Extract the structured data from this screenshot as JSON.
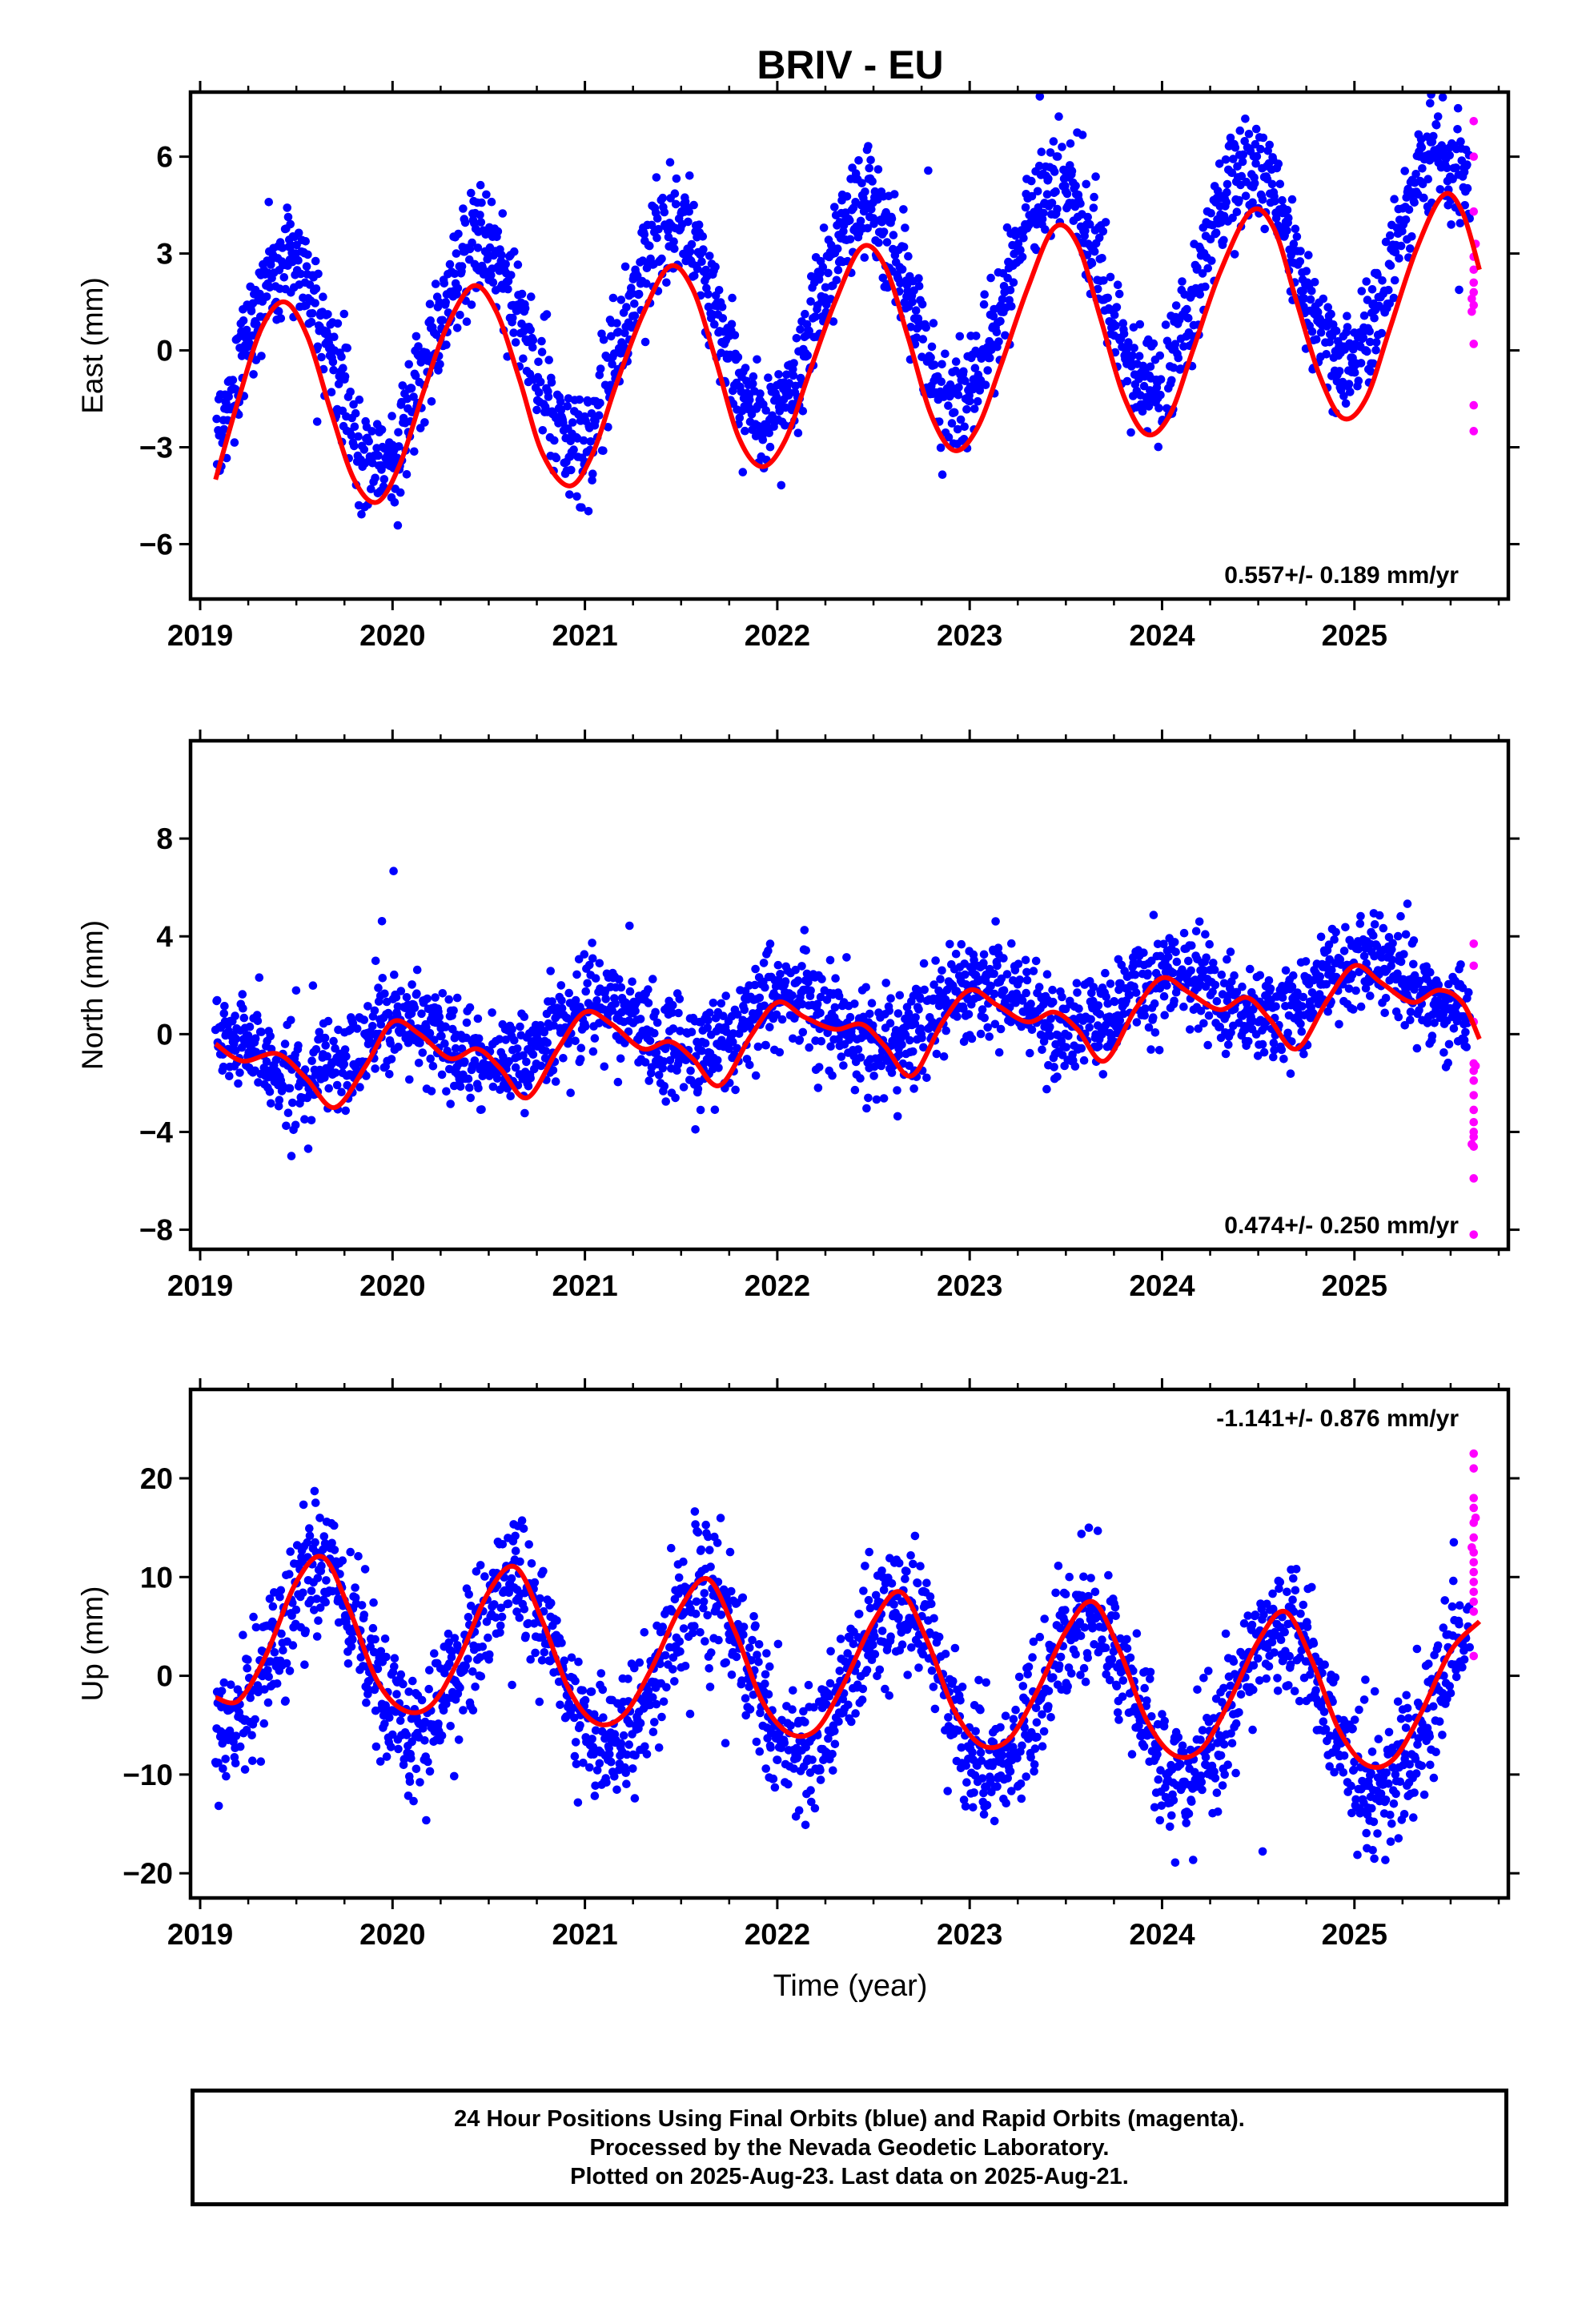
{
  "title": "BRIV - EU",
  "xlabel": "Time (year)",
  "colors": {
    "final": "#0000ff",
    "rapid": "#ff00ff",
    "model": "#ff0000",
    "frame": "#000000"
  },
  "caption": [
    "24 Hour Positions Using Final Orbits (blue) and Rapid Orbits (magenta).",
    "Processed by the Nevada Geodetic Laboratory.",
    "Plotted on 2025-Aug-23. Last data on 2025-Aug-21."
  ],
  "chart_data": [
    {
      "type": "scatter",
      "ylabel": "East (mm)",
      "xlim": [
        2018.95,
        2025.8
      ],
      "ylim": [
        -7.7,
        8.0
      ],
      "xticks": [
        "2019",
        "2020",
        "2021",
        "2022",
        "2023",
        "2024",
        "2025"
      ],
      "yticks": [
        -6,
        -3,
        0,
        3,
        6
      ],
      "rate": "0.557+/- 0.189 mm/yr",
      "rate_position": "bottom-right",
      "model": {
        "name": "model fit",
        "points": [
          [
            2019.08,
            -4.0
          ],
          [
            2019.2,
            -1.5
          ],
          [
            2019.32,
            0.7
          ],
          [
            2019.44,
            1.5
          ],
          [
            2019.56,
            0.4
          ],
          [
            2019.68,
            -1.9
          ],
          [
            2019.8,
            -4.0
          ],
          [
            2019.92,
            -4.7
          ],
          [
            2020.04,
            -3.5
          ],
          [
            2020.16,
            -1.3
          ],
          [
            2020.28,
            0.7
          ],
          [
            2020.42,
            2.0
          ],
          [
            2020.54,
            1.2
          ],
          [
            2020.66,
            -0.9
          ],
          [
            2020.78,
            -3.2
          ],
          [
            2020.92,
            -4.2
          ],
          [
            2021.04,
            -3.2
          ],
          [
            2021.16,
            -1.1
          ],
          [
            2021.3,
            1.1
          ],
          [
            2021.44,
            2.6
          ],
          [
            2021.56,
            1.9
          ],
          [
            2021.68,
            -0.3
          ],
          [
            2021.8,
            -2.7
          ],
          [
            2021.92,
            -3.6
          ],
          [
            2022.04,
            -2.8
          ],
          [
            2022.16,
            -0.8
          ],
          [
            2022.3,
            1.5
          ],
          [
            2022.44,
            3.2
          ],
          [
            2022.56,
            2.6
          ],
          [
            2022.68,
            0.4
          ],
          [
            2022.8,
            -2.0
          ],
          [
            2022.92,
            -3.1
          ],
          [
            2023.04,
            -2.4
          ],
          [
            2023.16,
            -0.5
          ],
          [
            2023.3,
            1.9
          ],
          [
            2023.44,
            3.8
          ],
          [
            2023.56,
            3.3
          ],
          [
            2023.68,
            1.0
          ],
          [
            2023.8,
            -1.4
          ],
          [
            2023.92,
            -2.6
          ],
          [
            2024.04,
            -2.0
          ],
          [
            2024.16,
            0.0
          ],
          [
            2024.3,
            2.4
          ],
          [
            2024.46,
            4.3
          ],
          [
            2024.58,
            3.8
          ],
          [
            2024.7,
            1.5
          ],
          [
            2024.82,
            -0.8
          ],
          [
            2024.94,
            -2.1
          ],
          [
            2025.06,
            -1.5
          ],
          [
            2025.18,
            0.6
          ],
          [
            2025.32,
            3.1
          ],
          [
            2025.46,
            4.8
          ],
          [
            2025.56,
            4.3
          ],
          [
            2025.65,
            2.5
          ]
        ]
      },
      "final": {
        "seasonal_amplitude": 3.2,
        "seasonal_peak": 0.45,
        "offset": -0.7,
        "trend_per_year": 0.6,
        "scatter": 0.85,
        "last_epoch": 2025.6
      },
      "rapid": [
        [
          2025.62,
          7.1
        ],
        [
          2025.62,
          6.0
        ],
        [
          2025.62,
          4.3
        ],
        [
          2025.62,
          2.9
        ],
        [
          2025.62,
          2.5
        ],
        [
          2025.62,
          2.1
        ],
        [
          2025.62,
          1.8
        ],
        [
          2025.62,
          1.4
        ],
        [
          2025.62,
          0.2
        ],
        [
          2025.62,
          -1.7
        ],
        [
          2025.62,
          -2.5
        ],
        [
          2025.61,
          1.6
        ],
        [
          2025.61,
          1.2
        ],
        [
          2025.63,
          3.3
        ]
      ]
    },
    {
      "type": "scatter",
      "ylabel": "North (mm)",
      "xlim": [
        2018.95,
        2025.8
      ],
      "ylim": [
        -8.8,
        12.0
      ],
      "xticks": [
        "2019",
        "2020",
        "2021",
        "2022",
        "2023",
        "2024",
        "2025"
      ],
      "yticks": [
        -8,
        -4,
        0,
        4,
        8
      ],
      "rate": "0.474+/- 0.250 mm/yr",
      "rate_position": "bottom-right",
      "model": {
        "name": "model fit",
        "points": [
          [
            2019.08,
            -0.4
          ],
          [
            2019.22,
            -1.1
          ],
          [
            2019.4,
            -0.8
          ],
          [
            2019.55,
            -1.8
          ],
          [
            2019.7,
            -3.0
          ],
          [
            2019.86,
            -1.3
          ],
          [
            2020.0,
            0.5
          ],
          [
            2020.14,
            0.0
          ],
          [
            2020.3,
            -1.0
          ],
          [
            2020.44,
            -0.6
          ],
          [
            2020.56,
            -1.4
          ],
          [
            2020.7,
            -2.6
          ],
          [
            2020.86,
            -0.6
          ],
          [
            2021.0,
            0.9
          ],
          [
            2021.14,
            0.4
          ],
          [
            2021.3,
            -0.6
          ],
          [
            2021.44,
            -0.3
          ],
          [
            2021.56,
            -1.0
          ],
          [
            2021.7,
            -2.1
          ],
          [
            2021.86,
            -0.1
          ],
          [
            2022.0,
            1.3
          ],
          [
            2022.14,
            0.7
          ],
          [
            2022.3,
            0.2
          ],
          [
            2022.44,
            0.4
          ],
          [
            2022.56,
            -0.5
          ],
          [
            2022.7,
            -1.7
          ],
          [
            2022.86,
            0.5
          ],
          [
            2023.0,
            1.8
          ],
          [
            2023.14,
            1.2
          ],
          [
            2023.3,
            0.5
          ],
          [
            2023.44,
            0.9
          ],
          [
            2023.56,
            0.2
          ],
          [
            2023.7,
            -1.1
          ],
          [
            2023.86,
            1.0
          ],
          [
            2024.0,
            2.3
          ],
          [
            2024.14,
            1.7
          ],
          [
            2024.3,
            1.0
          ],
          [
            2024.44,
            1.5
          ],
          [
            2024.56,
            0.6
          ],
          [
            2024.7,
            -0.6
          ],
          [
            2024.86,
            1.4
          ],
          [
            2025.0,
            2.8
          ],
          [
            2025.14,
            2.1
          ],
          [
            2025.3,
            1.3
          ],
          [
            2025.44,
            1.8
          ],
          [
            2025.56,
            1.3
          ],
          [
            2025.65,
            -0.2
          ]
        ]
      },
      "final": {
        "seasonal_amplitude": 1.1,
        "seasonal_peak": 0.05,
        "offset": -1.0,
        "trend_per_year": 0.5,
        "scatter": 1.0,
        "last_epoch": 2025.6
      },
      "rapid": [
        [
          2025.62,
          3.7
        ],
        [
          2025.62,
          2.8
        ],
        [
          2025.62,
          0.5
        ],
        [
          2025.62,
          -1.2
        ],
        [
          2025.62,
          -1.5
        ],
        [
          2025.62,
          -1.9
        ],
        [
          2025.62,
          -2.5
        ],
        [
          2025.62,
          -3.1
        ],
        [
          2025.62,
          -3.6
        ],
        [
          2025.62,
          -4.0
        ],
        [
          2025.62,
          -4.2
        ],
        [
          2025.62,
          -4.6
        ],
        [
          2025.62,
          -5.9
        ],
        [
          2025.62,
          -8.2
        ],
        [
          2025.61,
          -4.5
        ],
        [
          2025.63,
          -1.3
        ]
      ]
    },
    {
      "type": "scatter",
      "ylabel": "Up (mm)",
      "xlabel": "Time (year)",
      "xlim": [
        2018.95,
        2025.8
      ],
      "ylim": [
        -22.5,
        29.0
      ],
      "xticks": [
        "2019",
        "2020",
        "2021",
        "2022",
        "2023",
        "2024",
        "2025"
      ],
      "yticks": [
        -20,
        -10,
        0,
        10,
        20
      ],
      "rate": "-1.141+/- 0.876 mm/yr",
      "rate_position": "top-right",
      "model": {
        "name": "model fit",
        "points": [
          [
            2019.08,
            -2.2
          ],
          [
            2019.2,
            -2.5
          ],
          [
            2019.34,
            2.0
          ],
          [
            2019.5,
            9.5
          ],
          [
            2019.64,
            12.0
          ],
          [
            2019.78,
            6.5
          ],
          [
            2019.92,
            -0.5
          ],
          [
            2020.06,
            -3.5
          ],
          [
            2020.2,
            -3.0
          ],
          [
            2020.34,
            1.5
          ],
          [
            2020.5,
            8.5
          ],
          [
            2020.64,
            11.0
          ],
          [
            2020.78,
            5.5
          ],
          [
            2020.92,
            -1.5
          ],
          [
            2021.06,
            -4.8
          ],
          [
            2021.2,
            -4.0
          ],
          [
            2021.34,
            0.5
          ],
          [
            2021.5,
            7.0
          ],
          [
            2021.64,
            9.8
          ],
          [
            2021.78,
            4.5
          ],
          [
            2021.92,
            -2.5
          ],
          [
            2022.06,
            -5.8
          ],
          [
            2022.2,
            -5.5
          ],
          [
            2022.34,
            -1.0
          ],
          [
            2022.5,
            5.5
          ],
          [
            2022.64,
            8.5
          ],
          [
            2022.78,
            3.5
          ],
          [
            2022.92,
            -3.5
          ],
          [
            2023.06,
            -7.0
          ],
          [
            2023.2,
            -6.5
          ],
          [
            2023.34,
            -2.0
          ],
          [
            2023.5,
            4.5
          ],
          [
            2023.64,
            7.5
          ],
          [
            2023.78,
            2.5
          ],
          [
            2023.92,
            -4.5
          ],
          [
            2024.06,
            -8.0
          ],
          [
            2024.2,
            -7.5
          ],
          [
            2024.34,
            -3.0
          ],
          [
            2024.5,
            3.5
          ],
          [
            2024.64,
            6.5
          ],
          [
            2024.78,
            1.5
          ],
          [
            2024.92,
            -5.5
          ],
          [
            2025.06,
            -9.0
          ],
          [
            2025.2,
            -8.5
          ],
          [
            2025.34,
            -4.0
          ],
          [
            2025.5,
            2.5
          ],
          [
            2025.65,
            5.5
          ]
        ]
      },
      "final": {
        "seasonal_amplitude": 8.0,
        "seasonal_peak": 0.62,
        "offset": 3.0,
        "trend_per_year": -1.1,
        "scatter": 3.2,
        "last_epoch": 2025.6
      },
      "rapid": [
        [
          2025.62,
          22.5
        ],
        [
          2025.62,
          21.0
        ],
        [
          2025.62,
          18.0
        ],
        [
          2025.62,
          17.0
        ],
        [
          2025.62,
          15.5
        ],
        [
          2025.62,
          14.0
        ],
        [
          2025.62,
          12.5
        ],
        [
          2025.62,
          11.5
        ],
        [
          2025.62,
          10.5
        ],
        [
          2025.62,
          9.5
        ],
        [
          2025.62,
          8.5
        ],
        [
          2025.62,
          7.5
        ],
        [
          2025.62,
          6.5
        ],
        [
          2025.62,
          2.0
        ],
        [
          2025.61,
          13.0
        ],
        [
          2025.63,
          16.0
        ]
      ]
    }
  ]
}
